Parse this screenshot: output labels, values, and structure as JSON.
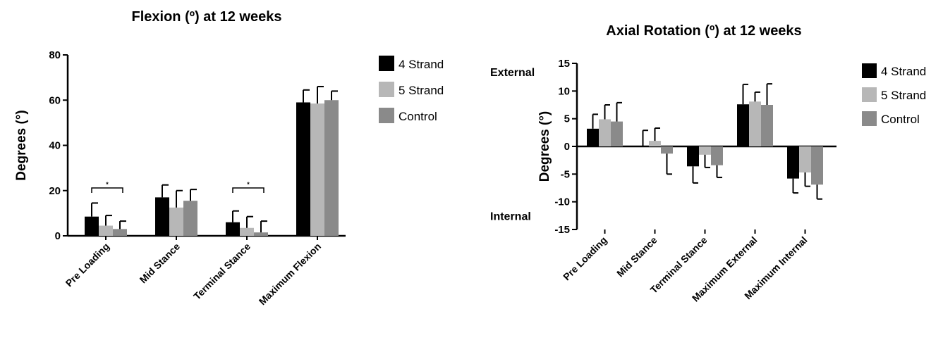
{
  "colors": {
    "4 Strand": "#000000",
    "5 Strand": "#b7b7b7",
    "Control": "#8a8a8a"
  },
  "chart_data": [
    {
      "type": "bar",
      "title": "Flexion (º) at 12 weeks",
      "ylabel": "Degrees (°)",
      "xlabel": "",
      "ylim": [
        0,
        80
      ],
      "yticks": [
        0,
        20,
        40,
        60,
        80
      ],
      "categories": [
        "Pre Loading",
        "Mid Stance",
        "Terminal Stance",
        "Maximum Flexion"
      ],
      "series": [
        {
          "name": "4 Strand",
          "values": [
            8.5,
            17,
            6,
            59
          ],
          "errors": [
            6,
            5.5,
            5,
            5.5
          ]
        },
        {
          "name": "5 Strand",
          "values": [
            4.5,
            12.5,
            3.5,
            58.5
          ],
          "errors": [
            4.5,
            7.5,
            5,
            7.5
          ]
        },
        {
          "name": "Control",
          "values": [
            3,
            15.5,
            1.5,
            60
          ],
          "errors": [
            3.5,
            5,
            5,
            4
          ]
        }
      ],
      "significance": [
        {
          "category": "Pre Loading",
          "label": "*"
        },
        {
          "category": "Terminal Stance",
          "label": "*"
        }
      ],
      "legend": "right",
      "grid": false
    },
    {
      "type": "bar",
      "title": "Axial Rotation (º) at 12 weeks",
      "ylabel": "Degrees (°)",
      "xlabel": "",
      "ylim": [
        -15,
        15
      ],
      "yticks": [
        -15,
        -10,
        -5,
        0,
        5,
        10,
        15
      ],
      "annotations": [
        {
          "label": "External",
          "value": 13.5
        },
        {
          "label": "Internal",
          "value": -12.5
        }
      ],
      "categories": [
        "Pre Loading",
        "Mid Stance",
        "Terminal Stance",
        "Maximum External",
        "Maximum Internal"
      ],
      "series": [
        {
          "name": "4 Strand",
          "values": [
            3.2,
            0,
            -3.6,
            7.6,
            -5.8
          ],
          "errors": [
            2.6,
            2.9,
            3,
            3.6,
            2.6
          ]
        },
        {
          "name": "5 Strand",
          "values": [
            4.9,
            1,
            -1.5,
            8.1,
            -4.7
          ],
          "errors": [
            2.6,
            2.3,
            2.3,
            1.7,
            2.5
          ]
        },
        {
          "name": "Control",
          "values": [
            4.5,
            -1.3,
            -3.4,
            7.5,
            -6.9
          ],
          "errors": [
            3.4,
            3.7,
            2.2,
            3.8,
            2.6
          ]
        }
      ],
      "legend": "right",
      "grid": false
    }
  ]
}
